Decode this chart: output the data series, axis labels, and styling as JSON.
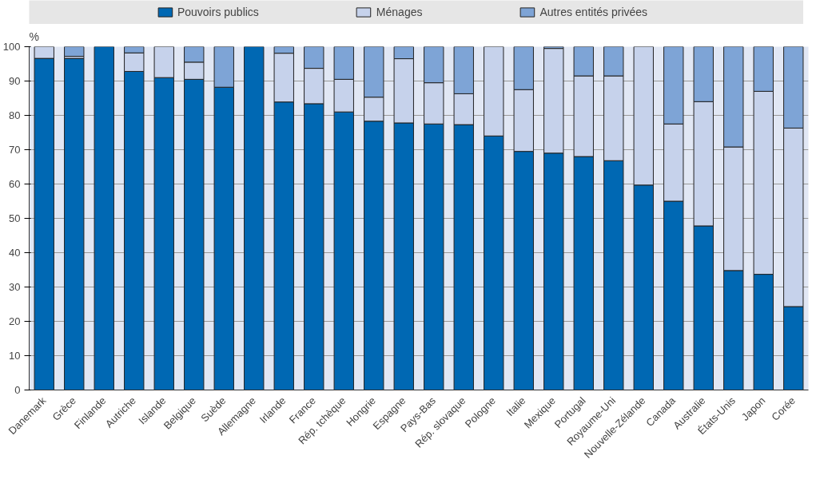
{
  "chart_data": {
    "type": "bar",
    "stacked": true,
    "ylabel": "%",
    "categories": [
      "Danemark",
      "Grèce",
      "Finlande",
      "Autriche",
      "Islande",
      "Belgique",
      "Suède",
      "Allemagne",
      "Irlande",
      "France",
      "Rép. tchèque",
      "Hongrie",
      "Espagne",
      "Pays-Bas",
      "Rép. slovaque",
      "Pologne",
      "Italie",
      "Mexique",
      "Portugal",
      "Royaume-Uni",
      "Nouvelle-Zélande",
      "Canada",
      "Australie",
      "États-Unis",
      "Japon",
      "Corée"
    ],
    "series": [
      {
        "name": "Pouvoirs publics",
        "color": "#0068b3",
        "values": [
          96.6,
          96.6,
          100,
          92.8,
          91,
          90.5,
          88.2,
          100,
          83.9,
          83.4,
          81,
          78.3,
          77.8,
          77.5,
          77.3,
          74,
          69.5,
          69,
          68,
          66.8,
          59.7,
          55,
          47.8,
          34.8,
          33.7,
          24.3
        ]
      },
      {
        "name": "Ménages",
        "color": "#c6d2eb",
        "values": [
          3.4,
          0.6,
          0,
          5.4,
          9,
          5,
          0,
          0,
          14.2,
          10.3,
          9.5,
          7,
          18.7,
          12,
          9,
          26,
          18,
          30.5,
          23.5,
          24.7,
          40.3,
          22.5,
          36.2,
          36,
          53.3,
          52
        ]
      },
      {
        "name": "Autres entités privées",
        "color": "#7ea4d6",
        "values": [
          0,
          2.8,
          0,
          1.8,
          0,
          4.5,
          11.8,
          0,
          1.9,
          6.3,
          9.5,
          14.7,
          3.5,
          10.5,
          13.7,
          0,
          12.5,
          0.5,
          8.5,
          8.5,
          0,
          22.5,
          16,
          29.2,
          13,
          23.7
        ]
      }
    ],
    "ylim": [
      0,
      100
    ],
    "yticks": [
      0,
      10,
      20,
      30,
      40,
      50,
      60,
      70,
      80,
      90,
      100
    ],
    "grid": "y",
    "legend": "top"
  }
}
